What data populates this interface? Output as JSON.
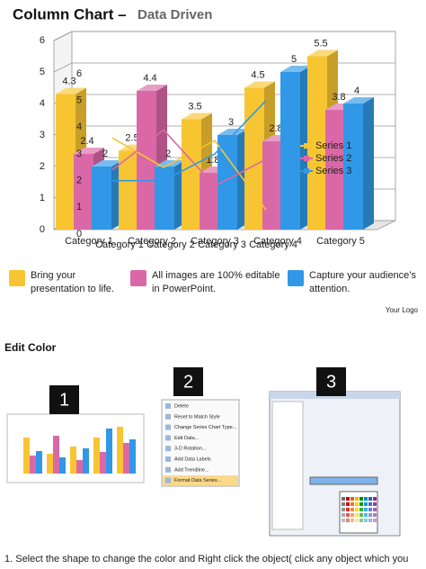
{
  "slide": {
    "title": "Column Chart –",
    "subtitle": "Data Driven",
    "features": [
      {
        "lines": [
          "Bring your",
          "presentation to life."
        ],
        "color": "#f8c532"
      },
      {
        "lines": [
          "All images are 100% editable",
          "in PowerPoint."
        ],
        "color": "#db68a6"
      },
      {
        "lines": [
          "Capture your audience’s",
          "attention."
        ],
        "color": "#3098e6"
      }
    ],
    "logo": "Your Logo",
    "section": "Edit Color",
    "steps": [
      "1",
      "2",
      "3"
    ],
    "menu": [
      "Delete",
      "Reset to Match Style",
      "Change Series Chart Type...",
      "Edit Data...",
      "3-D Rotation...",
      "Add Data Labels",
      "Add Trendline...",
      "Format Data Series..."
    ],
    "instruction": "1.   Select the shape to change the color and Right click the object( click any object which you"
  },
  "chart_data": [
    {
      "type": "bar3d",
      "categories": [
        "Category 1",
        "Category 2",
        "Category 3",
        "Category 4",
        "Category 5"
      ],
      "series": [
        {
          "name": "Series 1",
          "color": "#f8c532",
          "values": [
            4.3,
            2.5,
            3.5,
            4.5,
            5.5
          ]
        },
        {
          "name": "Series 2",
          "color": "#db68a6",
          "values": [
            2.4,
            4.4,
            1.8,
            2.8,
            3.8
          ]
        },
        {
          "name": "Series 3",
          "color": "#3098e6",
          "values": [
            2,
            2,
            3,
            5,
            4
          ]
        }
      ],
      "ylim": [
        0,
        6
      ],
      "yticks": [
        0,
        1,
        2,
        3,
        4,
        5,
        6
      ],
      "grid": true,
      "legend": "right",
      "data_labels": true
    },
    {
      "type": "line",
      "categories": [
        "Category 1",
        "Category 2",
        "Category 3",
        "Category 4"
      ],
      "series": [
        {
          "color": "#f8c532",
          "values": [
            3.6,
            2.5,
            3.5,
            0.9
          ]
        },
        {
          "color": "#db68a6",
          "values": [
            2.4,
            3.9,
            1.8,
            2.8
          ]
        },
        {
          "color": "#3098e6",
          "values": [
            2,
            2,
            3,
            5
          ]
        }
      ],
      "ylim": [
        0,
        6
      ],
      "yticks": [
        0,
        1,
        2,
        3,
        4,
        5,
        6
      ],
      "grid": false
    }
  ]
}
